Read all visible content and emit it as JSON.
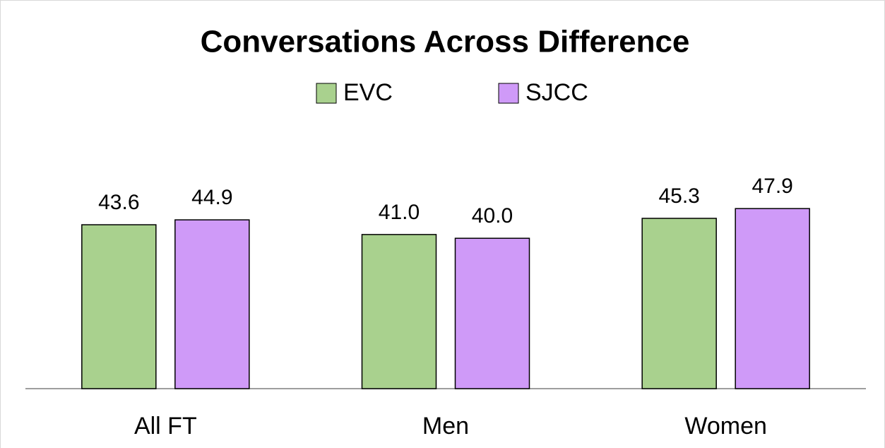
{
  "chart_data": {
    "type": "bar",
    "title": "Conversations Across Difference",
    "categories": [
      "All FT",
      "Men",
      "Women"
    ],
    "series": [
      {
        "name": "EVC",
        "color": "#a9d18e",
        "values": [
          43.6,
          41.0,
          45.3
        ],
        "value_labels": [
          "43.6",
          "41.0",
          "45.3"
        ]
      },
      {
        "name": "SJCC",
        "color": "#cf9af8",
        "values": [
          44.9,
          40.0,
          47.9
        ],
        "value_labels": [
          "44.9",
          "40.0",
          "47.9"
        ]
      }
    ],
    "legend": "top"
  }
}
